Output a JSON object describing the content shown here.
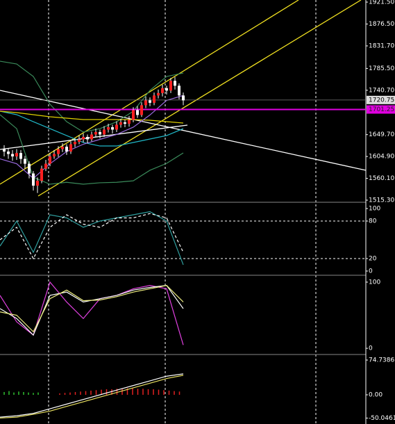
{
  "price_panel": {
    "ylim": [
      1512.4,
      1925.8
    ],
    "yticks": [
      {
        "value": 1921.5,
        "label": "1921.50"
      },
      {
        "value": 1876.5,
        "label": "1876.50"
      },
      {
        "value": 1831.7,
        "label": "1831.70"
      },
      {
        "value": 1785.5,
        "label": "1785.50"
      },
      {
        "value": 1740.7,
        "label": "1740.70"
      },
      {
        "value": 1649.7,
        "label": "1649.70"
      },
      {
        "value": 1604.9,
        "label": "1604.90"
      },
      {
        "value": 1560.1,
        "label": "1560.10"
      },
      {
        "value": 1515.3,
        "label": "1515.30"
      }
    ],
    "current_price": {
      "value": 1720.75,
      "label": "1720.75"
    },
    "level": {
      "value": 1701.25,
      "label": "1701.25"
    },
    "candles": [
      [
        1620,
        1628,
        1605,
        1615
      ],
      [
        1615,
        1622,
        1600,
        1610
      ],
      [
        1610,
        1618,
        1596,
        1605
      ],
      [
        1605,
        1620,
        1598,
        1612
      ],
      [
        1612,
        1618,
        1590,
        1600
      ],
      [
        1600,
        1606,
        1580,
        1590
      ],
      [
        1590,
        1595,
        1560,
        1570
      ],
      [
        1570,
        1575,
        1535,
        1545
      ],
      [
        1545,
        1562,
        1530,
        1555
      ],
      [
        1555,
        1586,
        1550,
        1580
      ],
      [
        1580,
        1598,
        1575,
        1590
      ],
      [
        1590,
        1612,
        1585,
        1605
      ],
      [
        1605,
        1618,
        1600,
        1610
      ],
      [
        1610,
        1626,
        1604,
        1620
      ],
      [
        1620,
        1632,
        1614,
        1625
      ],
      [
        1625,
        1630,
        1608,
        1615
      ],
      [
        1615,
        1636,
        1610,
        1630
      ],
      [
        1630,
        1642,
        1624,
        1635
      ],
      [
        1635,
        1648,
        1630,
        1640
      ],
      [
        1640,
        1652,
        1634,
        1645
      ],
      [
        1645,
        1650,
        1632,
        1640
      ],
      [
        1640,
        1656,
        1636,
        1650
      ],
      [
        1650,
        1662,
        1644,
        1655
      ],
      [
        1655,
        1660,
        1642,
        1650
      ],
      [
        1650,
        1667,
        1645,
        1660
      ],
      [
        1660,
        1672,
        1654,
        1665
      ],
      [
        1665,
        1670,
        1652,
        1660
      ],
      [
        1660,
        1677,
        1655,
        1670
      ],
      [
        1670,
        1682,
        1664,
        1675
      ],
      [
        1675,
        1680,
        1665,
        1672
      ],
      [
        1672,
        1688,
        1666,
        1680
      ],
      [
        1680,
        1706,
        1675,
        1700
      ],
      [
        1700,
        1708,
        1684,
        1690
      ],
      [
        1690,
        1716,
        1686,
        1710
      ],
      [
        1710,
        1728,
        1704,
        1720
      ],
      [
        1720,
        1726,
        1708,
        1715
      ],
      [
        1715,
        1736,
        1710,
        1730
      ],
      [
        1730,
        1742,
        1724,
        1735
      ],
      [
        1735,
        1752,
        1728,
        1745
      ],
      [
        1745,
        1750,
        1732,
        1740
      ],
      [
        1740,
        1766,
        1735,
        1760
      ],
      [
        1760,
        1768,
        1742,
        1750
      ],
      [
        1750,
        1755,
        1722,
        1730
      ],
      [
        1730,
        1736,
        1710,
        1720
      ]
    ],
    "lines": [
      {
        "color": "#3a8a5a",
        "values": [
          1800.3,
          1794.6,
          1769,
          1712,
          1676.3,
          1655,
          1662,
          1676,
          1697.7,
          1740.5,
          1769,
          1776
        ]
      },
      {
        "color": "#3a8a5a",
        "values": [
          1690.6,
          1662,
          1562.3,
          1548,
          1552,
          1548,
          1551,
          1552,
          1555,
          1576.6,
          1590.8,
          1612.2
        ]
      },
      {
        "color": "#20b8c8",
        "values": [
          1697.7,
          1690.6,
          1676.3,
          1662,
          1647.8,
          1633.6,
          1626.4,
          1626.4,
          1633.6,
          1640.7,
          1647.8,
          1662
        ]
      },
      {
        "color": "#e0d000",
        "values": [
          1697.7,
          1694.9,
          1690.6,
          1686.3,
          1683.5,
          1680.6,
          1680.6,
          1680.6,
          1680.6,
          1679.2,
          1676.3,
          1673.5
        ]
      },
      {
        "color": "#9a6ae0",
        "values": [
          1600,
          1590,
          1560,
          1590,
          1615,
          1630,
          1640,
          1650,
          1665,
          1690,
          1720,
          1730
        ]
      }
    ]
  },
  "stoch1": {
    "ylim": [
      -5.6,
      108.9
    ],
    "yticks": [
      100,
      80,
      20,
      0
    ],
    "series": [
      {
        "color": "#30a0a0",
        "dashed": false,
        "values": [
          40,
          80,
          30,
          90,
          85,
          70,
          80,
          85,
          90,
          95,
          80,
          10
        ]
      },
      {
        "color": "#ffffff",
        "dashed": true,
        "values": [
          50,
          70,
          20,
          70,
          90,
          75,
          70,
          85,
          85,
          92,
          85,
          30
        ]
      }
    ]
  },
  "stoch2": {
    "ylim": [
      -8.3,
      108.3
    ],
    "yticks": [
      100,
      0
    ],
    "series": [
      {
        "color": "#e040e0",
        "dashed": false,
        "values": [
          80,
          40,
          20,
          100,
          70,
          45,
          75,
          80,
          90,
          95,
          90,
          5
        ]
      },
      {
        "color": "#ffffff",
        "dashed": false,
        "values": [
          60,
          45,
          20,
          80,
          85,
          70,
          75,
          80,
          88,
          92,
          95,
          60
        ]
      },
      {
        "color": "#f0f080",
        "dashed": false,
        "values": [
          55,
          50,
          25,
          75,
          88,
          72,
          73,
          78,
          85,
          90,
          95,
          70
        ]
      }
    ]
  },
  "macd": {
    "ylim": [
      -62.8,
      83.7
    ],
    "yticks": [
      {
        "value": 74.7386,
        "label": "74.7386"
      },
      {
        "value": 0,
        "label": "0.00"
      },
      {
        "value": -50.0461,
        "label": "-50.0461"
      }
    ],
    "green_bars": [
      6,
      8,
      5,
      7,
      6,
      5,
      4,
      5
    ],
    "red_bars": [
      3,
      4,
      5,
      6,
      7,
      8,
      9,
      10,
      11,
      12,
      12,
      13,
      13,
      14,
      14,
      13,
      13,
      12,
      12,
      11,
      10,
      9,
      8,
      7
    ],
    "series": [
      {
        "color": "#ffffff",
        "dashed": false,
        "values": [
          -48,
          -45,
          -40,
          -30,
          -20,
          -10,
          0,
          10,
          20,
          30,
          40,
          45
        ]
      },
      {
        "color": "#e8e060",
        "dashed": false,
        "values": [
          -50,
          -48,
          -42,
          -35,
          -25,
          -15,
          -5,
          5,
          15,
          25,
          35,
          42
        ]
      }
    ]
  }
}
